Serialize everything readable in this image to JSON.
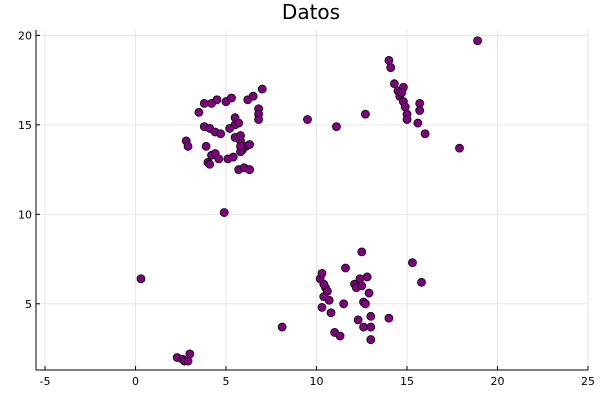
{
  "chart_data": {
    "type": "scatter",
    "title": "Datos",
    "xlabel": "",
    "ylabel": "",
    "xlim": [
      -5.5,
      25
    ],
    "ylim": [
      1.3,
      20.3
    ],
    "x_ticks": [
      -5,
      0,
      5,
      10,
      15,
      20,
      25
    ],
    "y_ticks": [
      5,
      10,
      15,
      20
    ],
    "grid": true,
    "legend": false,
    "point_color": "#800080",
    "point_edge_color": "#000000",
    "series": [
      {
        "x": [
          3.5,
          3.8,
          4.2,
          4.5,
          5.0,
          5.3,
          6.2,
          6.5,
          7.0,
          6.8,
          6.8,
          6.8,
          5.5,
          5.5,
          5.7,
          3.8,
          4.1,
          4.4,
          4.7,
          5.2,
          5.5,
          5.8,
          6.1,
          6.3,
          5.9,
          5.8,
          5.8,
          5.8,
          2.8,
          2.9,
          3.9,
          4.2,
          4.4,
          4.0,
          4.1,
          4.6,
          5.1,
          5.4,
          5.7,
          6.0,
          6.3,
          4.9,
          9.5,
          11.1,
          12.7,
          14.0,
          14.1,
          14.3,
          14.5,
          14.8,
          14.6,
          14.7,
          14.8,
          14.9,
          15.0,
          15.0,
          15.7,
          15.7,
          15.6,
          16.0,
          17.9,
          18.9,
          0.3,
          8.1,
          2.3,
          2.6,
          2.7,
          2.9,
          3.0,
          10.2,
          10.3,
          10.5,
          10.6,
          10.4,
          10.3,
          10.8,
          11.0,
          11.3,
          11.5,
          11.6,
          12.1,
          12.2,
          12.4,
          12.5,
          12.6,
          12.7,
          12.8,
          12.9,
          13.0,
          12.3,
          12.6,
          13.0,
          13.0,
          14.0,
          15.3,
          15.8,
          10.4,
          10.7,
          12.5
        ],
        "y": [
          15.7,
          16.2,
          16.2,
          16.4,
          16.3,
          16.5,
          16.4,
          16.6,
          17.0,
          15.9,
          15.6,
          15.3,
          15.4,
          15.0,
          15.1,
          14.9,
          14.8,
          14.6,
          14.5,
          14.8,
          14.3,
          14.1,
          13.8,
          13.9,
          13.6,
          13.5,
          13.8,
          14.4,
          14.1,
          13.8,
          13.8,
          13.3,
          13.4,
          12.9,
          12.8,
          13.1,
          13.1,
          13.2,
          12.5,
          12.6,
          12.5,
          10.1,
          15.3,
          14.9,
          15.6,
          18.6,
          18.2,
          17.3,
          16.9,
          17.1,
          16.6,
          16.8,
          16.3,
          16.0,
          15.6,
          15.3,
          16.2,
          15.8,
          15.1,
          14.5,
          13.7,
          19.7,
          6.4,
          3.7,
          2.0,
          1.9,
          1.8,
          1.8,
          2.2,
          6.4,
          6.7,
          5.9,
          5.7,
          5.4,
          4.8,
          4.5,
          3.4,
          3.2,
          5.0,
          7.0,
          6.1,
          5.9,
          6.4,
          6.0,
          5.1,
          5.0,
          6.5,
          5.6,
          4.3,
          4.1,
          3.7,
          3.0,
          3.7,
          4.2,
          7.3,
          6.2,
          6.1,
          5.2,
          7.9
        ]
      }
    ]
  }
}
